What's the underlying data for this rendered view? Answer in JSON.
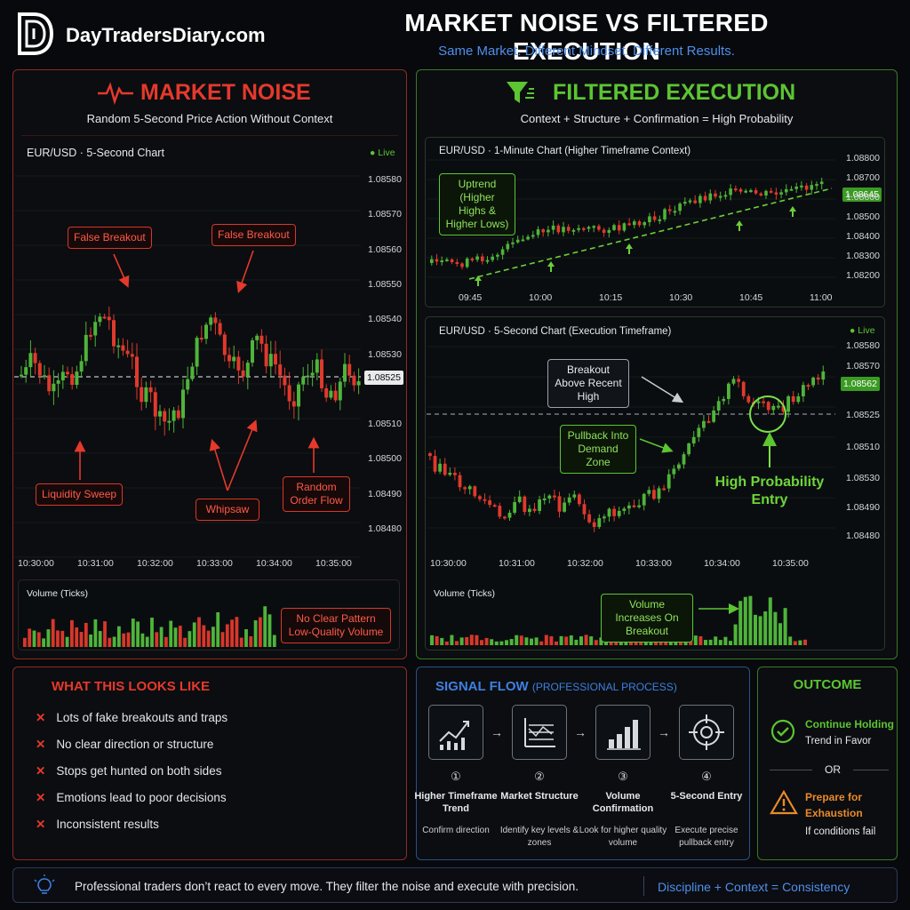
{
  "brand": {
    "logo_letters": "DTD",
    "name": "DayTradersDiary.com"
  },
  "header": {
    "title": "MARKET NOISE VS FILTERED EXECUTION",
    "subtitle": "Same Market. Different Mindset. Different Results."
  },
  "left": {
    "title": "MARKET NOISE",
    "subtitle": "Random 5-Second Price Action Without Context",
    "chart_title": "EUR/USD · 5-Second Chart",
    "live": "Live",
    "y_labels": [
      "1.08580",
      "1.08570",
      "1.08560",
      "1.08550",
      "1.08540",
      "1.08530",
      "1.08520",
      "1.08510",
      "1.08500",
      "1.08490",
      "1.08480"
    ],
    "current_price": "1.08525",
    "x_labels": [
      "10:30:00",
      "10:31:00",
      "10:32:00",
      "10:33:00",
      "10:34:00",
      "10:35:00"
    ],
    "annotations": {
      "false_breakout_1": "False Breakout",
      "false_breakout_2": "False Breakout",
      "liquidity_sweep": "Liquidity Sweep",
      "whipsaw": "Whipsaw",
      "random_order_flow": "Random Order Flow"
    },
    "volume_label": "Volume (Ticks)",
    "volume_note": "No Clear Pattern Low-Quality Volume"
  },
  "right": {
    "title": "FILTERED EXECUTION",
    "subtitle": "Context + Structure + Confirmation = High Probability",
    "htf_chart_title": "EUR/USD · 1-Minute Chart (Higher Timeframe Context)",
    "htf_y_labels": [
      "1.08800",
      "1.08700",
      "1.08600",
      "1.08500",
      "1.08400",
      "1.08300",
      "1.08200"
    ],
    "htf_current_price": "1.08645",
    "htf_x_labels": [
      "09:45",
      "10:00",
      "10:15",
      "10:30",
      "10:45",
      "11:00"
    ],
    "uptrend_note": "Uptrend (Higher Highs & Higher Lows)",
    "exec_chart_title": "EUR/USD · 5-Second Chart (Execution Timeframe)",
    "live": "Live",
    "exec_y_labels": [
      "1.08580",
      "1.08570",
      "1.08562",
      "1.08525",
      "1.08510",
      "1.08530",
      "1.08490",
      "1.08480"
    ],
    "exec_current_price": "1.08562",
    "exec_x_labels": [
      "10:30:00",
      "10:31:00",
      "10:32:00",
      "10:33:00",
      "10:34:00",
      "10:35:00"
    ],
    "breakout_note": "Breakout Above Recent High",
    "pullback_note": "Pullback Into Demand Zone",
    "entry_note": "High Probability Entry",
    "volume_label": "Volume (Ticks)",
    "volume_note": "Volume Increases On Breakout"
  },
  "looks_like": {
    "title": "WHAT THIS LOOKS LIKE",
    "items": [
      "Lots of fake breakouts and traps",
      "No clear direction or structure",
      "Stops get hunted on both sides",
      "Emotions lead to poor decisions",
      "Inconsistent results"
    ]
  },
  "signal_flow": {
    "title": "SIGNAL FLOW",
    "title_suffix": "(PROFESSIONAL PROCESS)",
    "steps": [
      {
        "num": "①",
        "name": "Higher Timeframe Trend",
        "desc": "Confirm direction",
        "icon": "trend-chart-icon"
      },
      {
        "num": "②",
        "name": "Market Structure",
        "desc": "Identify key levels & zones",
        "icon": "structure-levels-icon"
      },
      {
        "num": "③",
        "name": "Volume Confirmation",
        "desc": "Look for higher quality volume",
        "icon": "volume-bars-icon"
      },
      {
        "num": "④",
        "name": "5-Second Entry",
        "desc": "Execute precise pullback entry",
        "icon": "crosshair-target-icon"
      }
    ]
  },
  "outcome": {
    "title": "OUTCOME",
    "hold_title": "Continue Holding",
    "hold_desc": "Trend in Favor",
    "or": "OR",
    "prepare_title": "Prepare for Exhaustion",
    "prepare_desc": "If conditions fail"
  },
  "footer": {
    "quote": "Professional traders don’t react to every move. They filter the noise and execute with precision.",
    "motto": "Discipline + Context = Consistency"
  },
  "colors": {
    "red": "#e5392c",
    "green": "#5cc532",
    "blue": "#3f7fe0",
    "bg": "#07090d"
  }
}
